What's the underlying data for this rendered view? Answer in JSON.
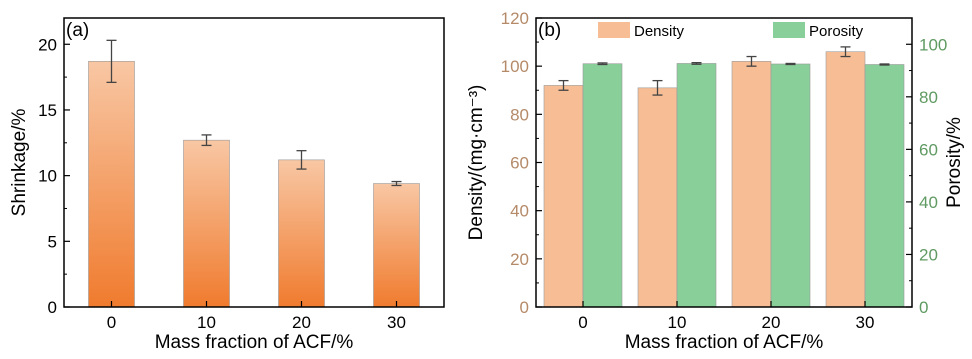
{
  "colors": {
    "density_bar": "#f7be95",
    "porosity_bar": "#88cf9a",
    "shrink_top": "#f8c7a4",
    "shrink_bottom": "#f07b2e",
    "density_axis": "#b58a68",
    "porosity_axis": "#5f9a62",
    "frame": "#000000",
    "errorbar": "#444444"
  },
  "chart_data": [
    {
      "type": "bar",
      "panel_label": "(a)",
      "categories": [
        "0",
        "10",
        "20",
        "30"
      ],
      "values": [
        18.7,
        12.7,
        11.2,
        9.4
      ],
      "errors": [
        1.6,
        0.4,
        0.7,
        0.15
      ],
      "xlabel": "Mass fraction of ACF/%",
      "ylabel": "Shrinkage/%",
      "ylim": [
        0,
        22
      ],
      "yticks": [
        "0",
        "5",
        "10",
        "15",
        "20"
      ],
      "grid": false,
      "legend": null
    },
    {
      "type": "bar",
      "panel_label": "(b)",
      "categories": [
        "0",
        "10",
        "20",
        "30"
      ],
      "series": [
        {
          "name": "Density",
          "axis": "left",
          "values": [
            92,
            91,
            102,
            106
          ],
          "errors": [
            2,
            3,
            2,
            2
          ]
        },
        {
          "name": "Porosity",
          "axis": "right",
          "values": [
            92.6,
            92.7,
            92.5,
            92.3
          ],
          "errors": [
            0.3,
            0.3,
            0.2,
            0.2
          ]
        }
      ],
      "xlabel": "Mass fraction of ACF/%",
      "ylabel_left": "Density/(mg·cm⁻³)",
      "ylabel_right": "Porosity/%",
      "ylim_left": [
        0,
        120
      ],
      "ylim_right": [
        0,
        110
      ],
      "yticks_left": [
        "0",
        "20",
        "40",
        "60",
        "80",
        "100",
        "120"
      ],
      "yticks_right": [
        "0",
        "20",
        "40",
        "60",
        "80",
        "100"
      ],
      "grid": false,
      "legend": "top"
    }
  ]
}
